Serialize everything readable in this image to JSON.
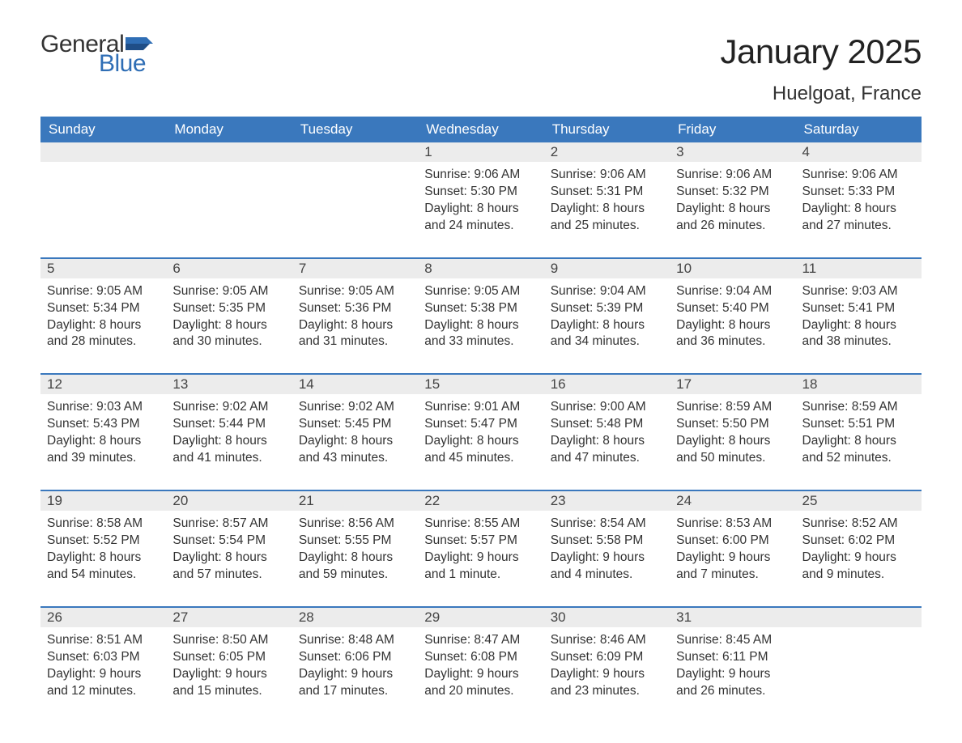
{
  "logo": {
    "text_general": "General",
    "text_blue": "Blue",
    "flag_color": "#2f6eb5"
  },
  "title": "January 2025",
  "location": "Huelgoat, France",
  "colors": {
    "header_bg": "#3a78bd",
    "header_text": "#ffffff",
    "daynum_bg": "#ececec",
    "week_border": "#3a78bd",
    "body_text": "#333333",
    "page_bg": "#ffffff"
  },
  "weekdays": [
    "Sunday",
    "Monday",
    "Tuesday",
    "Wednesday",
    "Thursday",
    "Friday",
    "Saturday"
  ],
  "weeks": [
    [
      null,
      null,
      null,
      {
        "n": "1",
        "sunrise": "9:06 AM",
        "sunset": "5:30 PM",
        "daylight": "8 hours and 24 minutes."
      },
      {
        "n": "2",
        "sunrise": "9:06 AM",
        "sunset": "5:31 PM",
        "daylight": "8 hours and 25 minutes."
      },
      {
        "n": "3",
        "sunrise": "9:06 AM",
        "sunset": "5:32 PM",
        "daylight": "8 hours and 26 minutes."
      },
      {
        "n": "4",
        "sunrise": "9:06 AM",
        "sunset": "5:33 PM",
        "daylight": "8 hours and 27 minutes."
      }
    ],
    [
      {
        "n": "5",
        "sunrise": "9:05 AM",
        "sunset": "5:34 PM",
        "daylight": "8 hours and 28 minutes."
      },
      {
        "n": "6",
        "sunrise": "9:05 AM",
        "sunset": "5:35 PM",
        "daylight": "8 hours and 30 minutes."
      },
      {
        "n": "7",
        "sunrise": "9:05 AM",
        "sunset": "5:36 PM",
        "daylight": "8 hours and 31 minutes."
      },
      {
        "n": "8",
        "sunrise": "9:05 AM",
        "sunset": "5:38 PM",
        "daylight": "8 hours and 33 minutes."
      },
      {
        "n": "9",
        "sunrise": "9:04 AM",
        "sunset": "5:39 PM",
        "daylight": "8 hours and 34 minutes."
      },
      {
        "n": "10",
        "sunrise": "9:04 AM",
        "sunset": "5:40 PM",
        "daylight": "8 hours and 36 minutes."
      },
      {
        "n": "11",
        "sunrise": "9:03 AM",
        "sunset": "5:41 PM",
        "daylight": "8 hours and 38 minutes."
      }
    ],
    [
      {
        "n": "12",
        "sunrise": "9:03 AM",
        "sunset": "5:43 PM",
        "daylight": "8 hours and 39 minutes."
      },
      {
        "n": "13",
        "sunrise": "9:02 AM",
        "sunset": "5:44 PM",
        "daylight": "8 hours and 41 minutes."
      },
      {
        "n": "14",
        "sunrise": "9:02 AM",
        "sunset": "5:45 PM",
        "daylight": "8 hours and 43 minutes."
      },
      {
        "n": "15",
        "sunrise": "9:01 AM",
        "sunset": "5:47 PM",
        "daylight": "8 hours and 45 minutes."
      },
      {
        "n": "16",
        "sunrise": "9:00 AM",
        "sunset": "5:48 PM",
        "daylight": "8 hours and 47 minutes."
      },
      {
        "n": "17",
        "sunrise": "8:59 AM",
        "sunset": "5:50 PM",
        "daylight": "8 hours and 50 minutes."
      },
      {
        "n": "18",
        "sunrise": "8:59 AM",
        "sunset": "5:51 PM",
        "daylight": "8 hours and 52 minutes."
      }
    ],
    [
      {
        "n": "19",
        "sunrise": "8:58 AM",
        "sunset": "5:52 PM",
        "daylight": "8 hours and 54 minutes."
      },
      {
        "n": "20",
        "sunrise": "8:57 AM",
        "sunset": "5:54 PM",
        "daylight": "8 hours and 57 minutes."
      },
      {
        "n": "21",
        "sunrise": "8:56 AM",
        "sunset": "5:55 PM",
        "daylight": "8 hours and 59 minutes."
      },
      {
        "n": "22",
        "sunrise": "8:55 AM",
        "sunset": "5:57 PM",
        "daylight": "9 hours and 1 minute."
      },
      {
        "n": "23",
        "sunrise": "8:54 AM",
        "sunset": "5:58 PM",
        "daylight": "9 hours and 4 minutes."
      },
      {
        "n": "24",
        "sunrise": "8:53 AM",
        "sunset": "6:00 PM",
        "daylight": "9 hours and 7 minutes."
      },
      {
        "n": "25",
        "sunrise": "8:52 AM",
        "sunset": "6:02 PM",
        "daylight": "9 hours and 9 minutes."
      }
    ],
    [
      {
        "n": "26",
        "sunrise": "8:51 AM",
        "sunset": "6:03 PM",
        "daylight": "9 hours and 12 minutes."
      },
      {
        "n": "27",
        "sunrise": "8:50 AM",
        "sunset": "6:05 PM",
        "daylight": "9 hours and 15 minutes."
      },
      {
        "n": "28",
        "sunrise": "8:48 AM",
        "sunset": "6:06 PM",
        "daylight": "9 hours and 17 minutes."
      },
      {
        "n": "29",
        "sunrise": "8:47 AM",
        "sunset": "6:08 PM",
        "daylight": "9 hours and 20 minutes."
      },
      {
        "n": "30",
        "sunrise": "8:46 AM",
        "sunset": "6:09 PM",
        "daylight": "9 hours and 23 minutes."
      },
      {
        "n": "31",
        "sunrise": "8:45 AM",
        "sunset": "6:11 PM",
        "daylight": "9 hours and 26 minutes."
      },
      null
    ]
  ],
  "labels": {
    "sunrise_prefix": "Sunrise: ",
    "sunset_prefix": "Sunset: ",
    "daylight_prefix": "Daylight: "
  }
}
